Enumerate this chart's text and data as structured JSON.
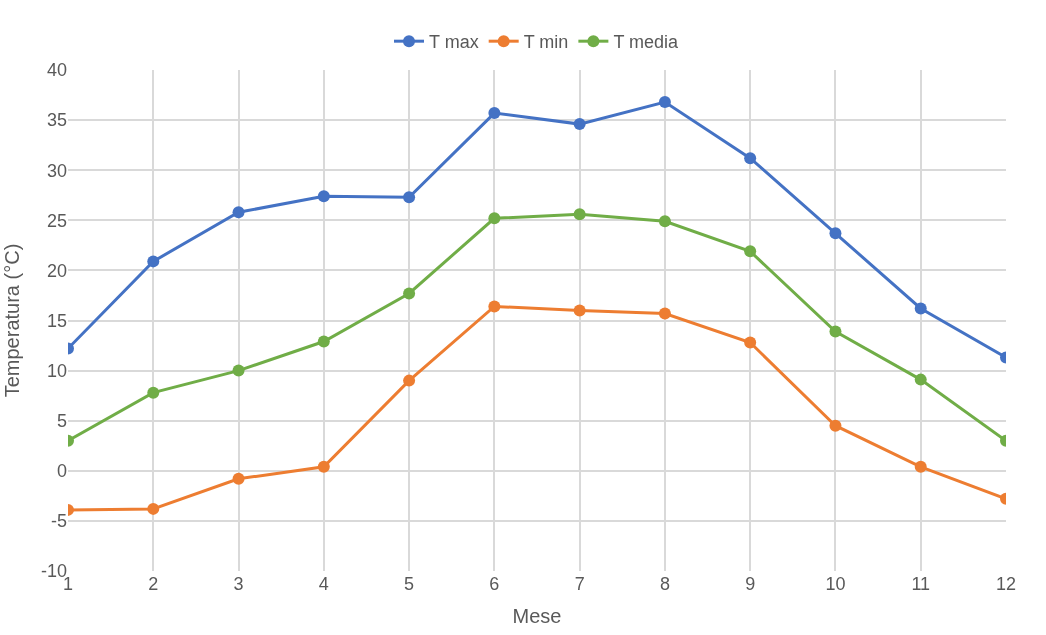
{
  "chart_data": {
    "type": "line",
    "xlabel": "Mese",
    "ylabel": "Temperatura (°C)",
    "x": [
      1,
      2,
      3,
      4,
      5,
      6,
      7,
      8,
      9,
      10,
      11,
      12
    ],
    "series": [
      {
        "name": "T max",
        "color": "#4472c4",
        "values": [
          12.2,
          20.9,
          25.8,
          27.4,
          27.3,
          35.7,
          34.6,
          36.8,
          31.2,
          23.7,
          16.2,
          11.3
        ]
      },
      {
        "name": "T min",
        "color": "#ed7d31",
        "values": [
          -3.9,
          -3.8,
          -0.8,
          0.4,
          9.0,
          16.4,
          16.0,
          15.7,
          12.8,
          4.5,
          0.4,
          -2.8
        ]
      },
      {
        "name": "T media",
        "color": "#70ad47",
        "values": [
          3.0,
          7.8,
          10.0,
          12.9,
          17.7,
          25.2,
          25.6,
          24.9,
          21.9,
          13.9,
          9.1,
          3.0
        ]
      }
    ],
    "xlim": [
      1,
      12
    ],
    "xticks": [
      1,
      2,
      3,
      4,
      5,
      6,
      7,
      8,
      9,
      10,
      11,
      12
    ],
    "ylim": [
      -10,
      40
    ],
    "yticks": [
      -10,
      -5,
      0,
      5,
      10,
      15,
      20,
      25,
      30,
      35,
      40
    ],
    "grid": true,
    "legend": "top",
    "marker": "circle",
    "line_style": "solid"
  }
}
